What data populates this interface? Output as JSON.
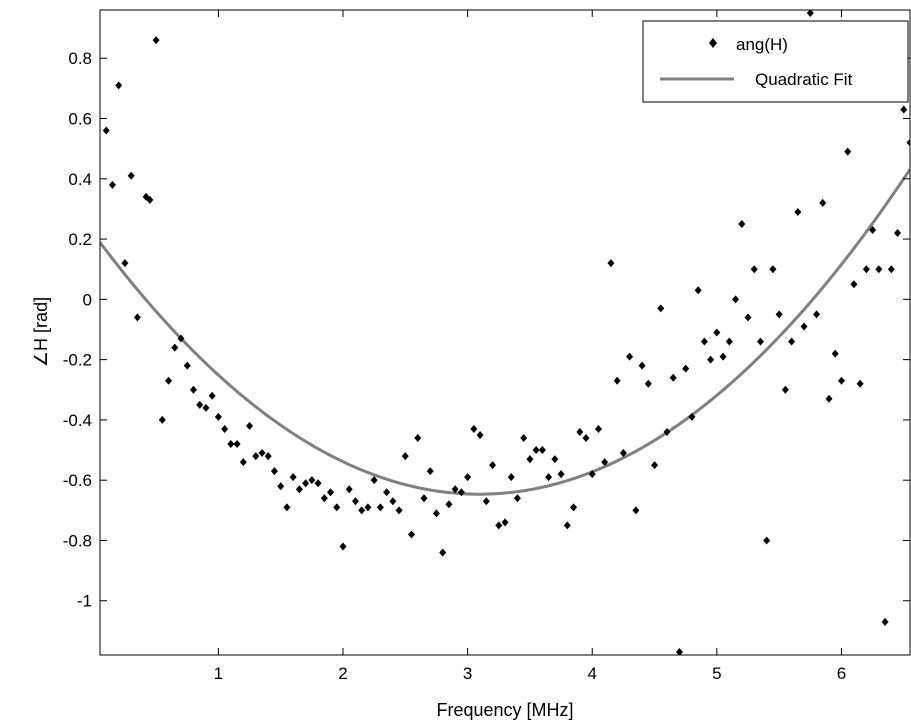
{
  "chart_data": {
    "type": "scatter",
    "xlabel": "Frequency [MHz]",
    "ylabel": "∠H [rad]",
    "xlim": [
      0.05,
      6.55
    ],
    "ylim": [
      -1.18,
      0.96
    ],
    "xticks": [
      1,
      2,
      3,
      4,
      5,
      6
    ],
    "yticks": [
      -1,
      -0.8,
      -0.6,
      -0.4,
      -0.2,
      0,
      0.2,
      0.4,
      0.6,
      0.8
    ],
    "grid": false,
    "legend_position": "top-right",
    "series": [
      {
        "name": "ang(H)",
        "kind": "scatter",
        "marker": "diamond",
        "color": "#000000",
        "points": [
          [
            0.1,
            0.56
          ],
          [
            0.15,
            0.38
          ],
          [
            0.2,
            0.71
          ],
          [
            0.25,
            0.12
          ],
          [
            0.3,
            0.41
          ],
          [
            0.35,
            -0.06
          ],
          [
            0.42,
            0.34
          ],
          [
            0.45,
            0.33
          ],
          [
            0.5,
            0.86
          ],
          [
            0.55,
            -0.4
          ],
          [
            0.6,
            -0.27
          ],
          [
            0.65,
            -0.16
          ],
          [
            0.7,
            -0.13
          ],
          [
            0.75,
            -0.22
          ],
          [
            0.8,
            -0.3
          ],
          [
            0.85,
            -0.35
          ],
          [
            0.9,
            -0.36
          ],
          [
            0.95,
            -0.32
          ],
          [
            1.0,
            -0.39
          ],
          [
            1.05,
            -0.43
          ],
          [
            1.1,
            -0.48
          ],
          [
            1.15,
            -0.48
          ],
          [
            1.2,
            -0.54
          ],
          [
            1.25,
            -0.42
          ],
          [
            1.3,
            -0.52
          ],
          [
            1.35,
            -0.51
          ],
          [
            1.4,
            -0.52
          ],
          [
            1.45,
            -0.57
          ],
          [
            1.5,
            -0.62
          ],
          [
            1.55,
            -0.69
          ],
          [
            1.6,
            -0.59
          ],
          [
            1.65,
            -0.63
          ],
          [
            1.7,
            -0.61
          ],
          [
            1.75,
            -0.6
          ],
          [
            1.8,
            -0.61
          ],
          [
            1.85,
            -0.66
          ],
          [
            1.9,
            -0.64
          ],
          [
            1.95,
            -0.69
          ],
          [
            2.0,
            -0.82
          ],
          [
            2.05,
            -0.63
          ],
          [
            2.1,
            -0.67
          ],
          [
            2.15,
            -0.7
          ],
          [
            2.2,
            -0.69
          ],
          [
            2.25,
            -0.6
          ],
          [
            2.3,
            -0.69
          ],
          [
            2.35,
            -0.64
          ],
          [
            2.4,
            -0.67
          ],
          [
            2.45,
            -0.7
          ],
          [
            2.5,
            -0.52
          ],
          [
            2.55,
            -0.78
          ],
          [
            2.6,
            -0.46
          ],
          [
            2.65,
            -0.66
          ],
          [
            2.7,
            -0.57
          ],
          [
            2.75,
            -0.71
          ],
          [
            2.8,
            -0.84
          ],
          [
            2.85,
            -0.68
          ],
          [
            2.9,
            -0.63
          ],
          [
            2.95,
            -0.64
          ],
          [
            3.0,
            -0.59
          ],
          [
            3.05,
            -0.43
          ],
          [
            3.1,
            -0.45
          ],
          [
            3.15,
            -0.67
          ],
          [
            3.2,
            -0.55
          ],
          [
            3.25,
            -0.75
          ],
          [
            3.3,
            -0.74
          ],
          [
            3.35,
            -0.59
          ],
          [
            3.4,
            -0.66
          ],
          [
            3.45,
            -0.46
          ],
          [
            3.5,
            -0.53
          ],
          [
            3.55,
            -0.5
          ],
          [
            3.6,
            -0.5
          ],
          [
            3.65,
            -0.59
          ],
          [
            3.7,
            -0.53
          ],
          [
            3.75,
            -0.58
          ],
          [
            3.8,
            -0.75
          ],
          [
            3.85,
            -0.69
          ],
          [
            3.9,
            -0.44
          ],
          [
            3.95,
            -0.46
          ],
          [
            4.0,
            -0.58
          ],
          [
            4.05,
            -0.43
          ],
          [
            4.1,
            -0.54
          ],
          [
            4.15,
            0.12
          ],
          [
            4.2,
            -0.27
          ],
          [
            4.25,
            -0.51
          ],
          [
            4.3,
            -0.19
          ],
          [
            4.35,
            -0.7
          ],
          [
            4.4,
            -0.22
          ],
          [
            4.45,
            -0.28
          ],
          [
            4.5,
            -0.55
          ],
          [
            4.55,
            -0.03
          ],
          [
            4.6,
            -0.44
          ],
          [
            4.65,
            -0.26
          ],
          [
            4.7,
            -1.17
          ],
          [
            4.75,
            -0.23
          ],
          [
            4.8,
            -0.39
          ],
          [
            4.85,
            0.03
          ],
          [
            4.9,
            -0.14
          ],
          [
            4.95,
            -0.2
          ],
          [
            5.0,
            -0.11
          ],
          [
            5.05,
            -0.19
          ],
          [
            5.1,
            -0.14
          ],
          [
            5.15,
            0.0
          ],
          [
            5.2,
            0.25
          ],
          [
            5.25,
            -0.06
          ],
          [
            5.3,
            0.1
          ],
          [
            5.35,
            -0.14
          ],
          [
            5.4,
            -0.8
          ],
          [
            5.45,
            0.1
          ],
          [
            5.5,
            -0.05
          ],
          [
            5.55,
            -0.3
          ],
          [
            5.6,
            -0.14
          ],
          [
            5.65,
            0.29
          ],
          [
            5.7,
            -0.09
          ],
          [
            5.75,
            0.95
          ],
          [
            5.8,
            -0.05
          ],
          [
            5.85,
            0.32
          ],
          [
            5.9,
            -0.33
          ],
          [
            5.95,
            -0.18
          ],
          [
            6.0,
            -0.27
          ],
          [
            6.05,
            0.49
          ],
          [
            6.1,
            0.05
          ],
          [
            6.15,
            -0.28
          ],
          [
            6.2,
            0.1
          ],
          [
            6.25,
            0.23
          ],
          [
            6.3,
            0.1
          ],
          [
            6.35,
            -1.07
          ],
          [
            6.4,
            0.1
          ],
          [
            6.45,
            0.22
          ],
          [
            6.5,
            0.63
          ],
          [
            6.55,
            0.52
          ]
        ]
      },
      {
        "name": "Quadratic Fit",
        "kind": "line",
        "color": "#808080",
        "coefficients": {
          "a": 0.0902,
          "b": -0.558,
          "c": 0.2165
        }
      }
    ]
  }
}
